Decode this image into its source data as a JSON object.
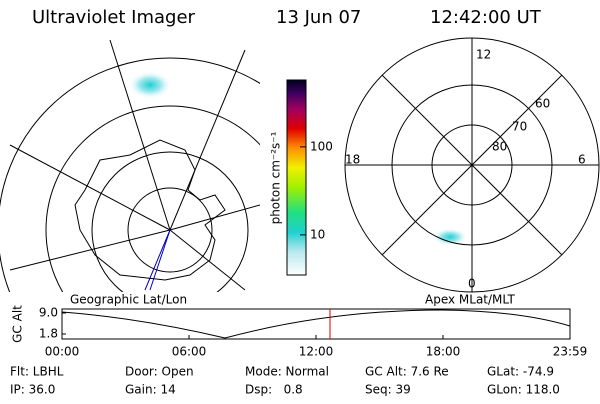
{
  "header": {
    "title": "Ultraviolet Imager",
    "date": "13 Jun 07",
    "time": "12:42:00 UT"
  },
  "colorbar": {
    "label": "photon cm⁻²s⁻¹",
    "log_scale": true,
    "clim": [
      3.5,
      575
    ],
    "ticks": [
      10,
      100
    ]
  },
  "left_map": {
    "label": "Geographic Lat/Lon"
  },
  "right_map": {
    "label": "Apex MLat/MLT",
    "mlt_labels": {
      "top": "12",
      "left": "18",
      "right": "6",
      "bottom": "0"
    },
    "lat_labels": [
      "60",
      "70",
      "80"
    ]
  },
  "orbit_plot": {
    "y_label": "GC Alt",
    "ylim": [
      1.8,
      9.0
    ],
    "yticks": [
      {
        "value": 9.0,
        "label": "9.0"
      },
      {
        "value": 1.8,
        "label": "1.8"
      }
    ],
    "xticks": [
      "00:00",
      "06:00",
      "12:00",
      "18:00",
      "23:59"
    ]
  },
  "info": [
    [
      "Flt: LBHL",
      "Door: Open",
      "Mode: Normal",
      "GC Alt: 7.6 Re",
      "GLat: -74.9"
    ],
    [
      "IP: 36.0",
      "Gain: 14",
      "Dsp:   0.8",
      "Seq: 39",
      "GLon: 118.0"
    ]
  ]
}
